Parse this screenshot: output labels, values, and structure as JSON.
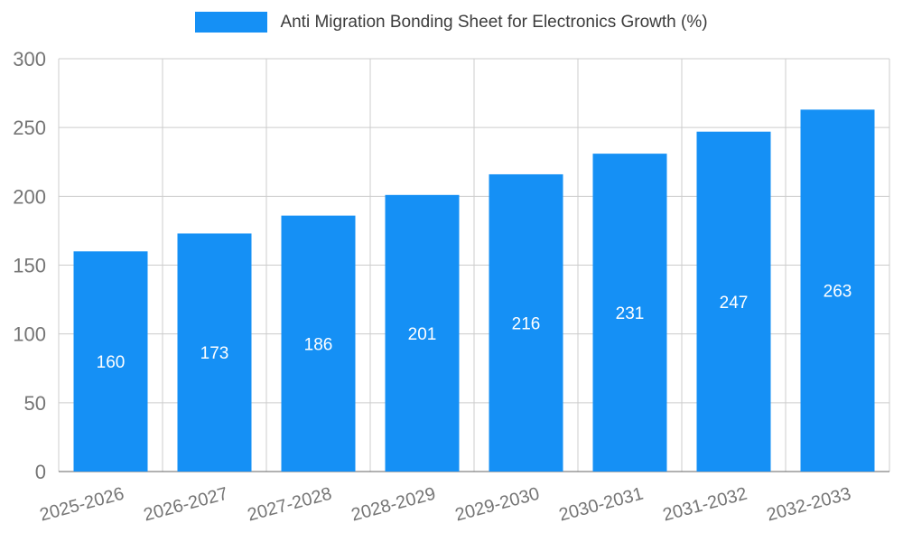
{
  "chart_data": {
    "type": "bar",
    "title": "Anti Migration Bonding Sheet for Electronics Growth (%)",
    "categories": [
      "2025-2026",
      "2026-2027",
      "2027-2028",
      "2028-2029",
      "2029-2030",
      "2030-2031",
      "2031-2032",
      "2032-2033"
    ],
    "values": [
      160,
      173,
      186,
      201,
      216,
      231,
      247,
      263
    ],
    "xlabel": "",
    "ylabel": "",
    "ylim": [
      0,
      300
    ],
    "yticks": [
      0,
      50,
      100,
      150,
      200,
      250,
      300
    ],
    "grid": true,
    "legend_position": "top",
    "bar_color": "#1590f5",
    "bar_value_label_color": "#ffffff",
    "axis_text_color": "#757575",
    "gridline_color": "#cccccc",
    "baseline_color": "#666666",
    "background_color": "#ffffff"
  }
}
